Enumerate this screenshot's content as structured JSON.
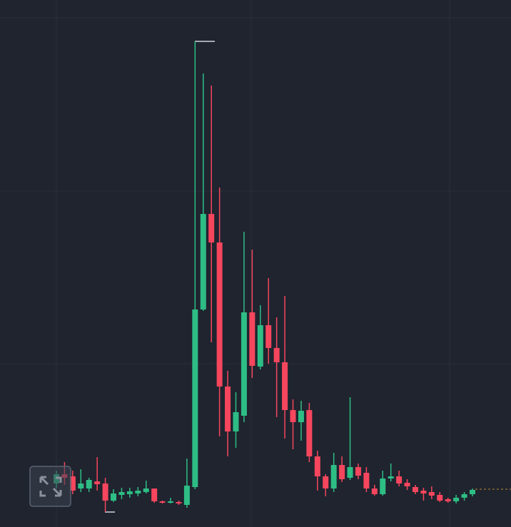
{
  "chart_data": {
    "type": "candlestick",
    "open": [
      61,
      74,
      71,
      54,
      54,
      64,
      61,
      37,
      45,
      46,
      47,
      49,
      54,
      36,
      34,
      35,
      31,
      56,
      305,
      439,
      399,
      197,
      134,
      156,
      301,
      225,
      283,
      251,
      231,
      164,
      147,
      164,
      99,
      71,
      54,
      87,
      69,
      84,
      76,
      54,
      46,
      68,
      71,
      62,
      56,
      51,
      49,
      45,
      39,
      36,
      41,
      46
    ],
    "high": [
      79,
      91,
      79,
      81,
      69,
      98,
      69,
      53,
      55,
      55,
      56,
      65,
      54,
      37,
      41,
      37,
      96,
      681,
      636,
      619,
      476,
      219,
      189,
      414,
      389,
      311,
      349,
      294,
      324,
      179,
      177,
      174,
      107,
      74,
      104,
      99,
      182,
      89,
      84,
      59,
      79,
      89,
      79,
      67,
      59,
      55,
      57,
      49,
      41,
      45,
      49,
      54
    ],
    "low": [
      54,
      59,
      46,
      49,
      49,
      51,
      21,
      35,
      39,
      41,
      43,
      47,
      34,
      33,
      33,
      31,
      27,
      53,
      303,
      259,
      127,
      99,
      111,
      147,
      209,
      221,
      229,
      154,
      124,
      109,
      121,
      91,
      51,
      43,
      49,
      63,
      66,
      67,
      49,
      44,
      44,
      64,
      57,
      52,
      46,
      37,
      39,
      35,
      34,
      33,
      37,
      43
    ],
    "close": [
      74,
      69,
      51,
      61,
      66,
      60,
      37,
      47,
      49,
      50,
      51,
      54,
      36,
      34,
      36,
      33,
      58,
      305,
      439,
      399,
      197,
      134,
      161,
      301,
      226,
      283,
      251,
      231,
      164,
      147,
      163,
      99,
      71,
      54,
      87,
      67,
      84,
      72,
      54,
      46,
      68,
      71,
      61,
      57,
      49,
      47,
      44,
      37,
      36,
      41,
      46,
      52
    ],
    "up_color": "#2ebd85",
    "down_color": "#f6465d",
    "ylim": [
      0,
      739
    ]
  }
}
